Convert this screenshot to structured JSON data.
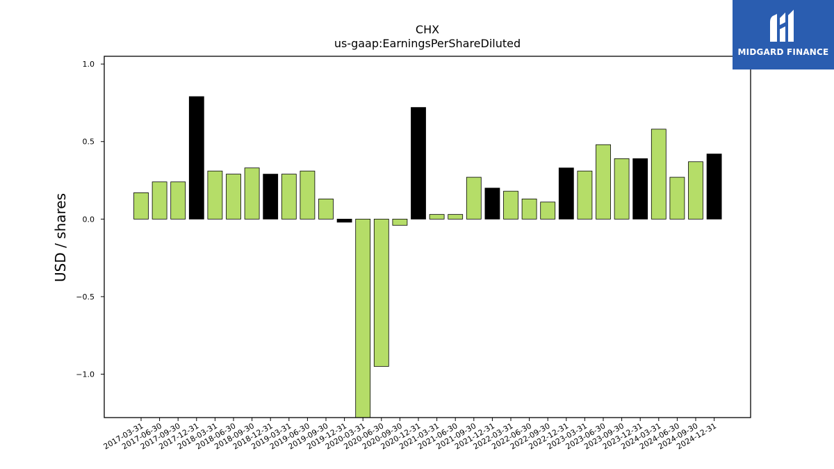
{
  "chart_data": {
    "type": "bar",
    "title": "CHX",
    "subtitle": "us-gaap:EarningsPerShareDiluted",
    "ylabel": "USD / shares",
    "xlabel": "",
    "ylim": [
      -1.28,
      1.05
    ],
    "yticks": [
      1.0,
      0.5,
      0.0,
      -0.5,
      -1.0
    ],
    "ytick_labels": [
      "1.0",
      "0.5",
      "0.0",
      "−0.5",
      "−1.0"
    ],
    "grid": false,
    "colors": {
      "quarterly": "#b5dd68",
      "annual": "#000000",
      "edge": "#000000"
    },
    "categories": [
      "2017-03-31",
      "2017-06-30",
      "2017-09-30",
      "2017-12-31",
      "2018-03-31",
      "2018-06-30",
      "2018-09-30",
      "2018-12-31",
      "2019-03-31",
      "2019-06-30",
      "2019-09-30",
      "2019-12-31",
      "2020-03-31",
      "2020-06-30",
      "2020-09-30",
      "2020-12-31",
      "2021-03-31",
      "2021-06-30",
      "2021-09-30",
      "2021-12-31",
      "2022-03-31",
      "2022-06-30",
      "2022-09-30",
      "2022-12-31",
      "2023-03-31",
      "2023-06-30",
      "2023-09-30",
      "2023-12-31",
      "2024-03-31",
      "2024-06-30",
      "2024-09-30",
      "2024-12-31"
    ],
    "values": [
      0.17,
      0.24,
      0.24,
      0.79,
      0.31,
      0.29,
      0.33,
      0.29,
      0.29,
      0.31,
      0.13,
      -0.02,
      -1.45,
      -0.95,
      -0.04,
      0.72,
      0.03,
      0.03,
      0.27,
      0.2,
      0.18,
      0.13,
      0.11,
      0.33,
      0.31,
      0.48,
      0.39,
      0.39,
      0.58,
      0.27,
      0.37,
      0.42
    ],
    "bar_colors": [
      "quarterly",
      "quarterly",
      "quarterly",
      "annual",
      "quarterly",
      "quarterly",
      "quarterly",
      "annual",
      "quarterly",
      "quarterly",
      "quarterly",
      "annual",
      "quarterly",
      "quarterly",
      "quarterly",
      "annual",
      "quarterly",
      "quarterly",
      "quarterly",
      "annual",
      "quarterly",
      "quarterly",
      "quarterly",
      "annual",
      "quarterly",
      "quarterly",
      "quarterly",
      "annual",
      "quarterly",
      "quarterly",
      "quarterly",
      "annual"
    ]
  },
  "logo": {
    "text": "MIDGARD FINANCE",
    "icon": "midgard-logo-icon",
    "bg_color": "#2a5db0"
  }
}
